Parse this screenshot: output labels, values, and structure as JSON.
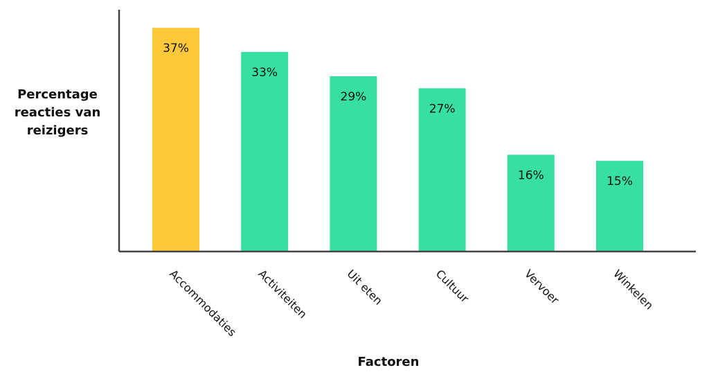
{
  "chart_data": {
    "type": "bar",
    "xlabel": "Factoren",
    "ylabel": "Percentage reacties van reizigers",
    "categories": [
      "Accommodaties",
      "Activiteiten",
      "Uit eten",
      "Cultuur",
      "Vervoer",
      "Winkelen"
    ],
    "values": [
      37,
      33,
      29,
      27,
      16,
      15
    ],
    "value_labels": [
      "37%",
      "33%",
      "29%",
      "27%",
      "16%",
      "15%"
    ],
    "colors": [
      "#ffc83a",
      "#37e0a0",
      "#37e0a0",
      "#37e0a0",
      "#37e0a0",
      "#37e0a0"
    ],
    "ylim": [
      0,
      40
    ]
  }
}
